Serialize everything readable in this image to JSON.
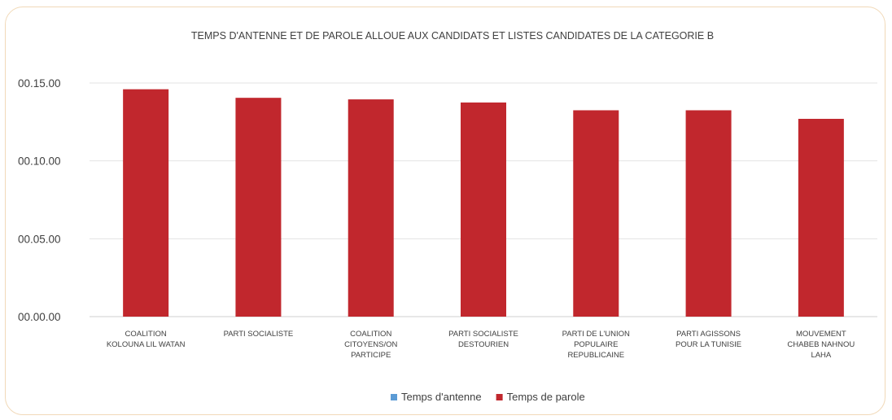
{
  "chart_data": {
    "type": "bar",
    "title": "TEMPS D'ANTENNE ET DE PAROLE ALLOUE AUX CANDIDATS ET LISTES CANDIDATES DE LA CATEGORIE B",
    "categories": [
      [
        "COALITION",
        "KOLOUNA LIL WATAN"
      ],
      [
        "PARTI SOCIALISTE"
      ],
      [
        "COALITION",
        "CITOYENS/ON",
        "PARTICIPE"
      ],
      [
        "PARTI SOCIALISTE",
        "DESTOURIEN"
      ],
      [
        "PARTI DE L'UNION",
        "POPULAIRE",
        "REPUBLICAINE"
      ],
      [
        "PARTI AGISSONS",
        "POUR LA TUNISIE"
      ],
      [
        "MOUVEMENT",
        "CHABEB NAHNOU",
        "LAHA"
      ]
    ],
    "yticks": [
      "00.00.00",
      "00.05.00",
      "00.10.00",
      "00.15.00"
    ],
    "ylim_minutes": [
      0,
      15
    ],
    "grid": true,
    "legend_position": "bottom",
    "series": [
      {
        "name": "Temps d'antenne",
        "color": "#5b9bd5",
        "values_minutes": [
          0,
          0,
          0,
          0,
          0,
          0,
          0
        ]
      },
      {
        "name": "Temps de parole",
        "color": "#c1272d",
        "values_minutes": [
          14.6,
          14.05,
          13.95,
          13.75,
          13.25,
          13.25,
          12.7
        ]
      }
    ]
  }
}
